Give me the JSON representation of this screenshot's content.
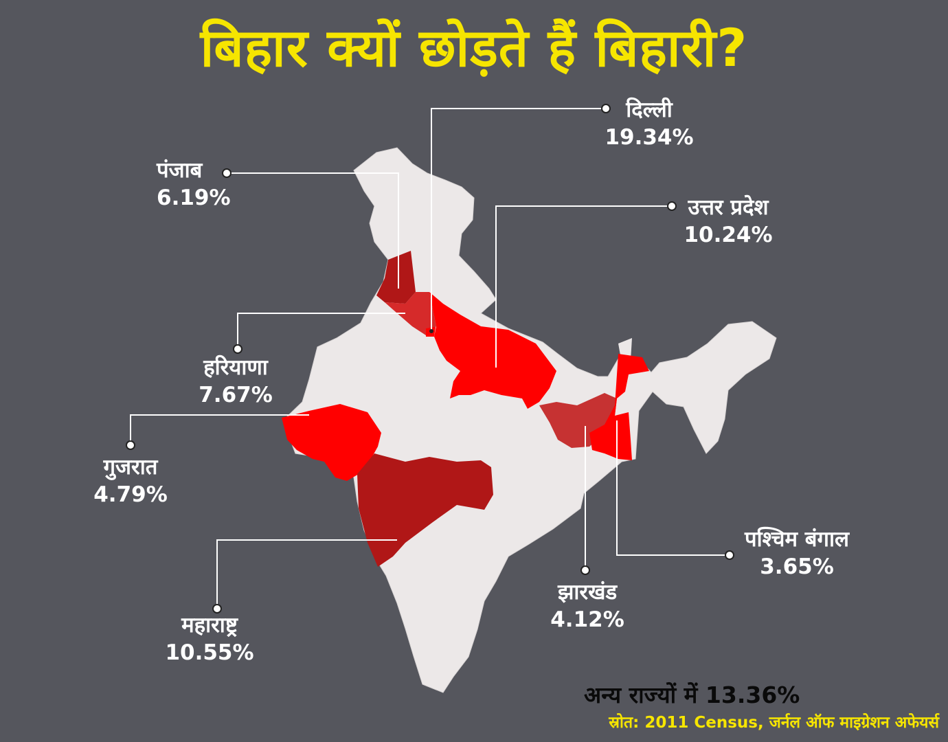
{
  "title": "बिहार क्यों छोड़ते हैं बिहारी?",
  "colors": {
    "background": "#55565d",
    "title": "#f6e500",
    "land": "#ece8e8",
    "highest": "#ff0000",
    "high": "#b01717",
    "mid": "#c63232",
    "low": "#d62a2a",
    "leader": "#ffffff"
  },
  "states": [
    {
      "key": "delhi",
      "name": "दिल्ली",
      "value": "19.34%"
    },
    {
      "key": "punjab",
      "name": "पंजाब",
      "value": "6.19%"
    },
    {
      "key": "uttar_pradesh",
      "name": "उत्तर प्रदेश",
      "value": "10.24%"
    },
    {
      "key": "haryana",
      "name": "हरियाणा",
      "value": "7.67%"
    },
    {
      "key": "gujarat",
      "name": "गुजरात",
      "value": "4.79%"
    },
    {
      "key": "maharashtra",
      "name": "महाराष्ट्र",
      "value": "10.55%"
    },
    {
      "key": "jharkhand",
      "name": "झारखंड",
      "value": "4.12%"
    },
    {
      "key": "west_bengal",
      "name": "पश्चिम बंगाल",
      "value": "3.65%"
    }
  ],
  "other_states": "अन्य राज्यों में 13.36%",
  "source": "स्रोत: 2011 Census, जर्नल ऑफ माइग्रेशन अफेयर्स"
}
